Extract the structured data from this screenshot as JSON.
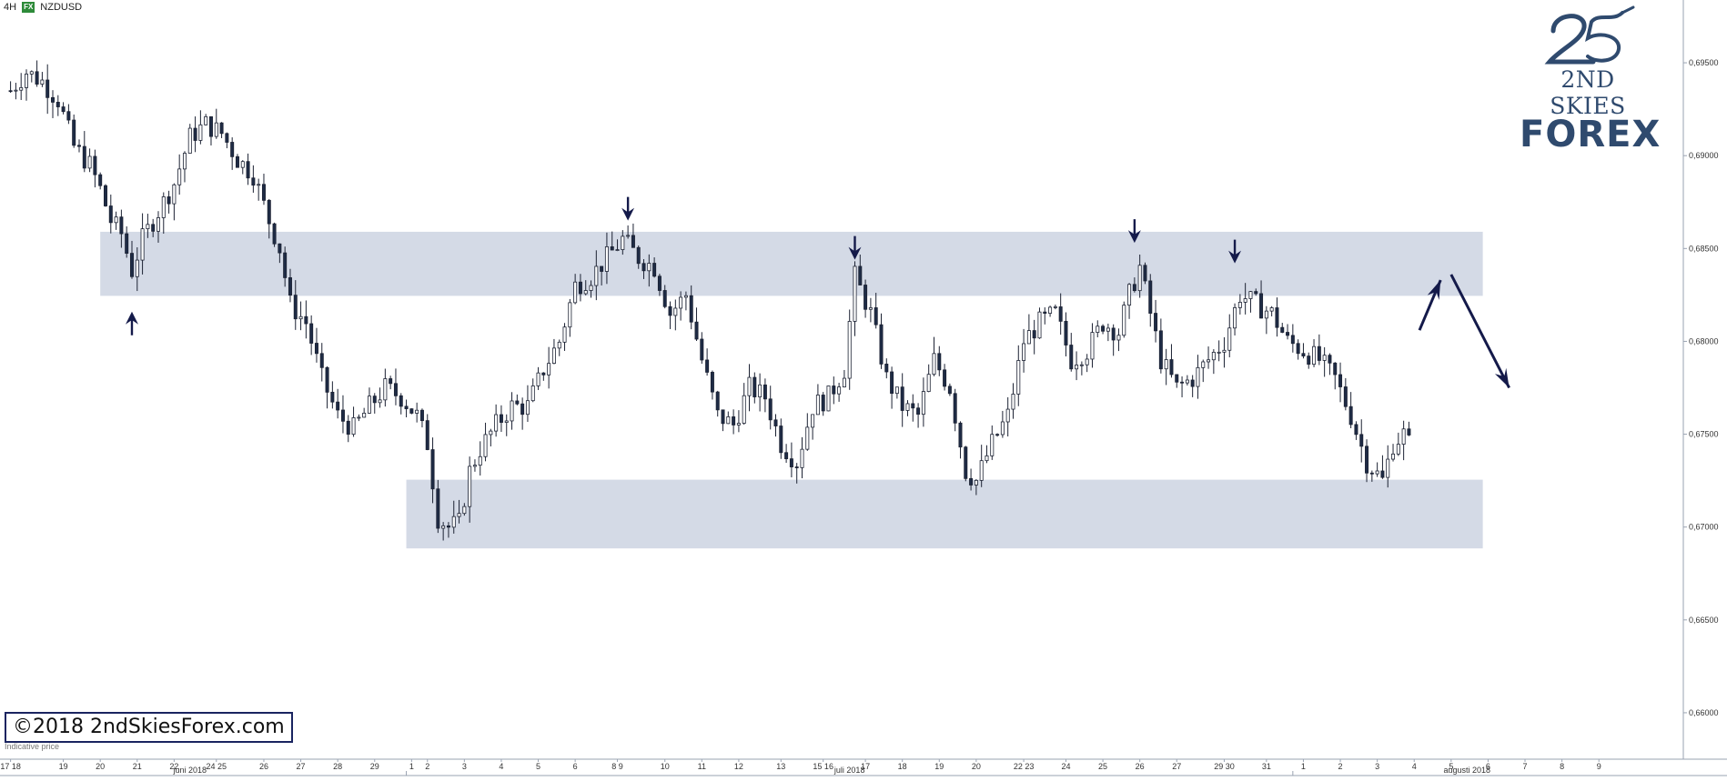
{
  "toolbar": {
    "timeframe": "4H",
    "badge": "FX",
    "symbol": "NZDUSD"
  },
  "logo": {
    "mark": "25",
    "line1": "2ND SKIES",
    "line2": "FOREX"
  },
  "copyright": "©2018 2ndSkiesForex.com",
  "footnote": "Indicative price",
  "colors": {
    "bull_fill": "#ffffff",
    "bear_fill": "#1e2b45",
    "candle_stroke": "#1c2233",
    "zone": "#c9d1e0",
    "arrow": "#141a4a",
    "axis": "#9aa3b2",
    "logo": "#2f4a6e",
    "text": "#333333"
  },
  "chart_data": {
    "type": "candlestick",
    "symbol": "NZDUSD",
    "timeframe": "4H",
    "ylim": [
      0.6575,
      0.6975
    ],
    "y_ticks": [
      "0,69500",
      "0,69000",
      "0,68500",
      "0,68000",
      "0,67500",
      "0,67000",
      "0,66500",
      "0,66000"
    ],
    "y_tick_values": [
      0.695,
      0.69,
      0.685,
      0.68,
      0.675,
      0.67,
      0.665,
      0.66
    ],
    "bar_range": [
      -2,
      317
    ],
    "x_ticks": [
      {
        "label": "17 18",
        "bar": 0
      },
      {
        "label": "19",
        "bar": 10
      },
      {
        "label": "20",
        "bar": 17
      },
      {
        "label": "21",
        "bar": 24
      },
      {
        "label": "22",
        "bar": 31
      },
      {
        "label": "24 25",
        "bar": 39
      },
      {
        "label": "26",
        "bar": 48
      },
      {
        "label": "27",
        "bar": 55
      },
      {
        "label": "28",
        "bar": 62
      },
      {
        "label": "29",
        "bar": 69
      },
      {
        "label": "1",
        "bar": 76
      },
      {
        "label": "2",
        "bar": 79
      },
      {
        "label": "3",
        "bar": 86
      },
      {
        "label": "4",
        "bar": 93
      },
      {
        "label": "5",
        "bar": 100
      },
      {
        "label": "6",
        "bar": 107
      },
      {
        "label": "8 9",
        "bar": 115
      },
      {
        "label": "10",
        "bar": 124
      },
      {
        "label": "11",
        "bar": 131
      },
      {
        "label": "12",
        "bar": 138
      },
      {
        "label": "13",
        "bar": 146
      },
      {
        "label": "15 16",
        "bar": 154
      },
      {
        "label": "17",
        "bar": 162
      },
      {
        "label": "18",
        "bar": 169
      },
      {
        "label": "19",
        "bar": 176
      },
      {
        "label": "20",
        "bar": 183
      },
      {
        "label": "22 23",
        "bar": 192
      },
      {
        "label": "24",
        "bar": 200
      },
      {
        "label": "25",
        "bar": 207
      },
      {
        "label": "26",
        "bar": 214
      },
      {
        "label": "27",
        "bar": 221
      },
      {
        "label": "29 30",
        "bar": 230
      },
      {
        "label": "31",
        "bar": 238
      },
      {
        "label": "1",
        "bar": 245
      },
      {
        "label": "2",
        "bar": 252
      },
      {
        "label": "3",
        "bar": 259
      },
      {
        "label": "4",
        "bar": 266
      },
      {
        "label": "5",
        "bar": 273
      },
      {
        "label": "6",
        "bar": 280
      },
      {
        "label": "7",
        "bar": 287
      },
      {
        "label": "8",
        "bar": 294
      },
      {
        "label": "9",
        "bar": 301
      }
    ],
    "months": [
      {
        "label": "juni 2018",
        "bar": 34
      },
      {
        "label": "juli 2018",
        "bar": 159
      },
      {
        "label": "augusti 2018",
        "bar": 276
      }
    ],
    "month_dividers": [
      75,
      243
    ],
    "zones": [
      {
        "from_bar": 17,
        "to_bar": 279,
        "low": 0.68245,
        "high": 0.6859
      },
      {
        "from_bar": 75,
        "to_bar": 279,
        "low": 0.66885,
        "high": 0.67255
      }
    ],
    "arrows": [
      {
        "direction": "up",
        "bar": 23,
        "price": 0.6816
      },
      {
        "direction": "down",
        "bar": 117,
        "price": 0.6865
      },
      {
        "direction": "down",
        "bar": 160,
        "price": 0.6844
      },
      {
        "direction": "down",
        "bar": 213,
        "price": 0.6853
      },
      {
        "direction": "down",
        "bar": 232,
        "price": 0.6842
      }
    ],
    "projection": [
      {
        "from": [
          267,
          0.6806
        ],
        "to": [
          271,
          0.6833
        ]
      },
      {
        "from": [
          273,
          0.6836
        ],
        "to": [
          284,
          0.6775
        ]
      }
    ],
    "waypoints": [
      [
        0,
        0.6935
      ],
      [
        3,
        0.6945
      ],
      [
        6,
        0.694
      ],
      [
        9,
        0.693
      ],
      [
        12,
        0.6905
      ],
      [
        15,
        0.6895
      ],
      [
        17,
        0.6882
      ],
      [
        19,
        0.6865
      ],
      [
        21,
        0.6858
      ],
      [
        23,
        0.6838
      ],
      [
        25,
        0.6855
      ],
      [
        28,
        0.687
      ],
      [
        31,
        0.6885
      ],
      [
        34,
        0.691
      ],
      [
        37,
        0.6917
      ],
      [
        40,
        0.6912
      ],
      [
        43,
        0.6898
      ],
      [
        46,
        0.689
      ],
      [
        49,
        0.6865
      ],
      [
        51,
        0.685
      ],
      [
        53,
        0.682
      ],
      [
        56,
        0.681
      ],
      [
        59,
        0.678
      ],
      [
        62,
        0.676
      ],
      [
        65,
        0.6753
      ],
      [
        68,
        0.6765
      ],
      [
        71,
        0.6775
      ],
      [
        74,
        0.677
      ],
      [
        77,
        0.676
      ],
      [
        79,
        0.6745
      ],
      [
        81,
        0.6705
      ],
      [
        83,
        0.67
      ],
      [
        85,
        0.6702
      ],
      [
        87,
        0.673
      ],
      [
        89,
        0.6742
      ],
      [
        92,
        0.6755
      ],
      [
        95,
        0.6765
      ],
      [
        98,
        0.6765
      ],
      [
        101,
        0.6785
      ],
      [
        104,
        0.68
      ],
      [
        107,
        0.683
      ],
      [
        110,
        0.6835
      ],
      [
        113,
        0.6845
      ],
      [
        116,
        0.6855
      ],
      [
        119,
        0.6845
      ],
      [
        122,
        0.684
      ],
      [
        125,
        0.6815
      ],
      [
        128,
        0.6825
      ],
      [
        131,
        0.679
      ],
      [
        134,
        0.676
      ],
      [
        137,
        0.6755
      ],
      [
        140,
        0.6775
      ],
      [
        143,
        0.677
      ],
      [
        146,
        0.6745
      ],
      [
        149,
        0.6735
      ],
      [
        152,
        0.6765
      ],
      [
        155,
        0.677
      ],
      [
        158,
        0.6785
      ],
      [
        160,
        0.6835
      ],
      [
        163,
        0.6815
      ],
      [
        166,
        0.678
      ],
      [
        169,
        0.6765
      ],
      [
        172,
        0.676
      ],
      [
        175,
        0.679
      ],
      [
        178,
        0.6775
      ],
      [
        181,
        0.673
      ],
      [
        183,
        0.6725
      ],
      [
        186,
        0.6745
      ],
      [
        189,
        0.676
      ],
      [
        192,
        0.68
      ],
      [
        195,
        0.681
      ],
      [
        198,
        0.6815
      ],
      [
        201,
        0.679
      ],
      [
        204,
        0.6795
      ],
      [
        207,
        0.681
      ],
      [
        210,
        0.6805
      ],
      [
        212,
        0.6825
      ],
      [
        214,
        0.684
      ],
      [
        216,
        0.6815
      ],
      [
        218,
        0.679
      ],
      [
        221,
        0.6775
      ],
      [
        224,
        0.678
      ],
      [
        227,
        0.679
      ],
      [
        230,
        0.68
      ],
      [
        233,
        0.6825
      ],
      [
        236,
        0.682
      ],
      [
        239,
        0.6815
      ],
      [
        242,
        0.68
      ],
      [
        245,
        0.6795
      ],
      [
        248,
        0.679
      ],
      [
        251,
        0.678
      ],
      [
        254,
        0.676
      ],
      [
        257,
        0.6735
      ],
      [
        260,
        0.6725
      ],
      [
        262,
        0.6745
      ],
      [
        264,
        0.675
      ],
      [
        265,
        0.6745
      ]
    ],
    "wick_seed": 7
  }
}
